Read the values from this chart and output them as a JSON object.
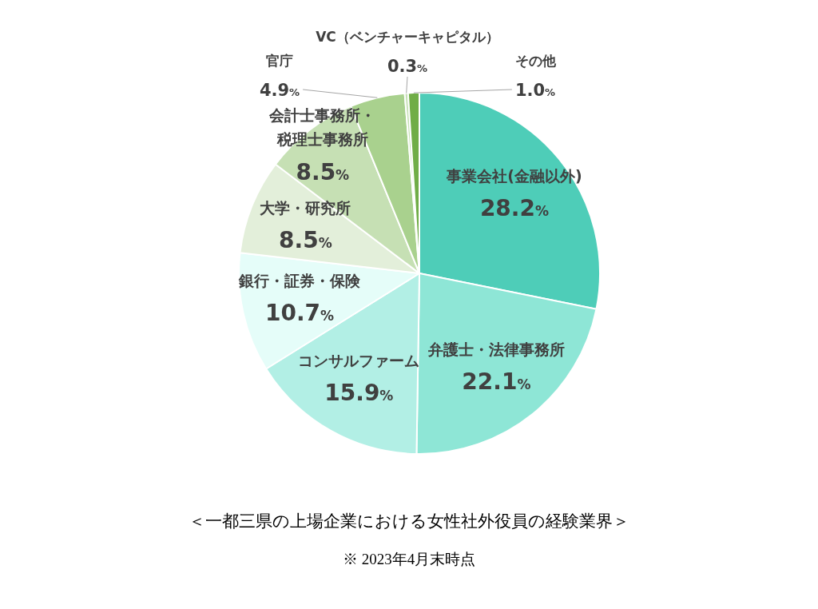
{
  "chart_data": {
    "type": "pie",
    "title": "＜一都三県の上場企業における女性社外役員の経験業界＞",
    "annotations": [
      "※ 2023年4月末時点"
    ],
    "categories": [
      "事業会社(金融以外)",
      "弁護士・法律事務所",
      "コンサルファーム",
      "銀行・証券・保険",
      "大学・研究所",
      "会計士事務所・税理士事務所",
      "官庁",
      "VC（ベンチャーキャピタル）",
      "その他"
    ],
    "values": [
      28.2,
      22.1,
      15.9,
      10.7,
      8.5,
      8.5,
      4.9,
      0.3,
      1.0
    ],
    "colors": [
      "#4ecdb8",
      "#8ee6d6",
      "#b2efe5",
      "#e5fdf9",
      "#e3efda",
      "#c6e0b4",
      "#a9d18e",
      "#c5e0b4",
      "#70ad47"
    ],
    "value_labels": [
      "28.2%",
      "22.1%",
      "15.9%",
      "10.7%",
      "8.5%",
      "8.5%",
      "4.9%",
      "0.3%",
      "1.0%"
    ]
  }
}
